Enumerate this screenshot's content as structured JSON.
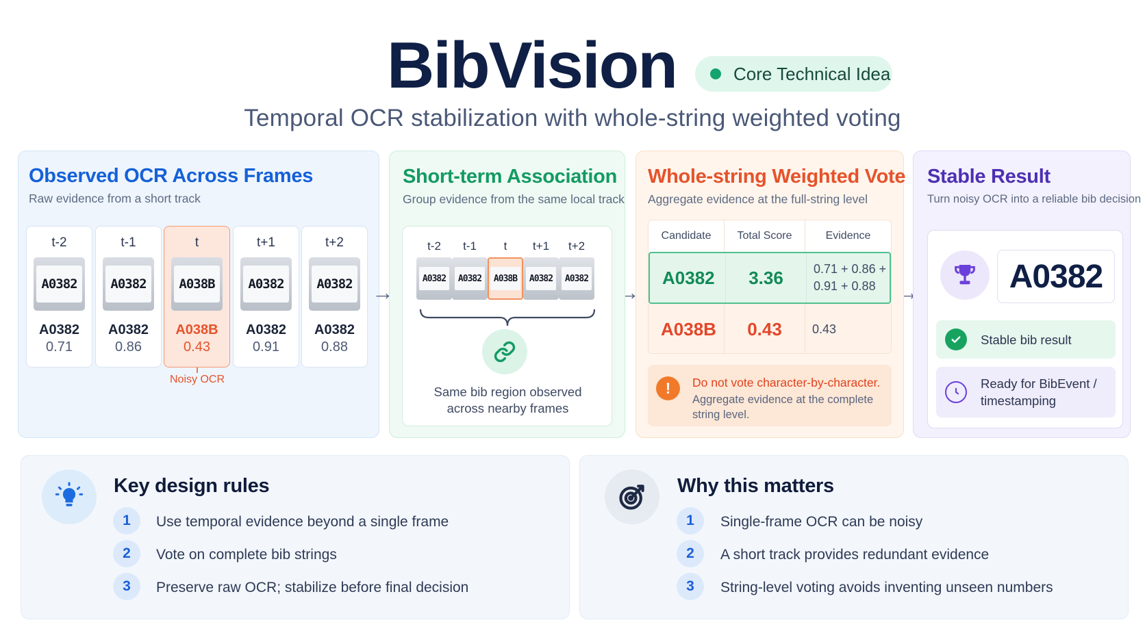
{
  "header": {
    "title": "BibVision",
    "badge": "Core Technical Idea",
    "subtitle": "Temporal OCR stabilization with whole-string weighted voting"
  },
  "observed": {
    "title": "Observed OCR Across Frames",
    "subtitle": "Raw evidence from a short track",
    "frames": [
      {
        "label": "t-2",
        "plate": "A0382",
        "ocr": "A0382",
        "conf": "0.71"
      },
      {
        "label": "t-1",
        "plate": "A0382",
        "ocr": "A0382",
        "conf": "0.86"
      },
      {
        "label": "t",
        "plate": "A038B",
        "ocr": "A038B",
        "conf": "0.43"
      },
      {
        "label": "t+1",
        "plate": "A0382",
        "ocr": "A0382",
        "conf": "0.91"
      },
      {
        "label": "t+2",
        "plate": "A0382",
        "ocr": "A0382",
        "conf": "0.88"
      }
    ],
    "noisy_label": "Noisy OCR"
  },
  "association": {
    "title": "Short-term Association",
    "subtitle": "Group evidence from the same local track",
    "frames": [
      {
        "label": "t-2",
        "plate": "A0382"
      },
      {
        "label": "t-1",
        "plate": "A0382"
      },
      {
        "label": "t",
        "plate": "A038B"
      },
      {
        "label": "t+1",
        "plate": "A0382"
      },
      {
        "label": "t+2",
        "plate": "A0382"
      }
    ],
    "caption_line1": "Same bib region observed",
    "caption_line2": "across nearby frames"
  },
  "vote": {
    "title": "Whole-string Weighted Vote",
    "subtitle": "Aggregate evidence at the full-string level",
    "headers": [
      "Candidate",
      "Total Score",
      "Evidence"
    ],
    "rows": [
      {
        "candidate": "A0382",
        "score": "3.36",
        "evidence_line1": "0.71 + 0.86 +",
        "evidence_line2": "0.91 + 0.88"
      },
      {
        "candidate": "A038B",
        "score": "0.43",
        "evidence_line1": "0.43",
        "evidence_line2": ""
      }
    ],
    "note_title": "Do not vote character-by-character.",
    "note_line1": "Aggregate evidence at the complete",
    "note_line2": "string level."
  },
  "stable": {
    "title": "Stable Result",
    "subtitle": "Turn noisy OCR into a reliable bib decision",
    "result": "A0382",
    "item1": "Stable bib result",
    "item2_line1": "Ready for BibEvent /",
    "item2_line2": "timestamping"
  },
  "rules": {
    "title": "Key design rules",
    "items": [
      "Use temporal evidence beyond a single frame",
      "Vote on complete bib strings",
      "Preserve raw OCR; stabilize before final decision"
    ]
  },
  "why": {
    "title": "Why this matters",
    "items": [
      "Single-frame OCR can be noisy",
      "A short track provides redundant evidence",
      "String-level voting avoids inventing unseen numbers"
    ]
  },
  "numbers": [
    "1",
    "2",
    "3"
  ],
  "icons": {
    "badge_dot": "status-dot",
    "link": "link-icon",
    "warning": "warning-icon",
    "trophy": "trophy-icon",
    "check": "check-circle-icon",
    "clock": "clock-icon",
    "bulb": "lightbulb-icon",
    "target": "target-icon",
    "arrow": "arrow-right-icon"
  },
  "colors": {
    "navy": "#0f1f45",
    "blue": "#1560d8",
    "green": "#139a62",
    "orange": "#e5532b",
    "purple": "#4d2fb3"
  }
}
